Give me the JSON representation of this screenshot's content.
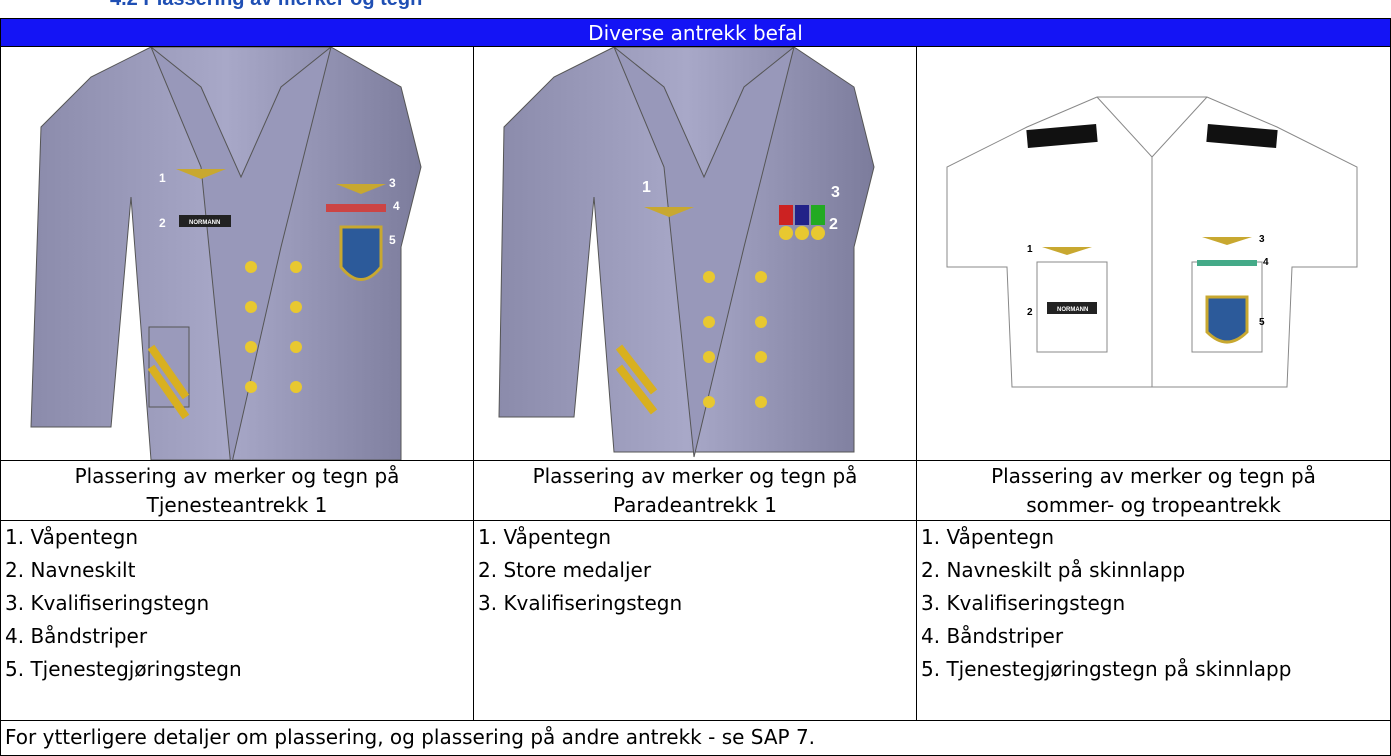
{
  "header": {
    "title": "4.2 Plassering av merker og tegn"
  },
  "table": {
    "heading": "Diverse antrekk befal",
    "images": [
      {
        "labels": [
          "1",
          "2",
          "3",
          "4",
          "5"
        ],
        "name_tag": "NORMANN"
      },
      {
        "labels": [
          "1",
          "3",
          "2"
        ]
      },
      {
        "labels": [
          "1",
          "2",
          "3",
          "4",
          "5"
        ],
        "name_tag": "NORMANN"
      }
    ],
    "captions": [
      [
        "Plassering av merker og tegn på",
        "Tjenesteantrekk 1"
      ],
      [
        "Plassering av merker og tegn på",
        "Paradeantrekk 1"
      ],
      [
        "Plassering av merker og tegn på",
        "sommer- og tropeantrekk"
      ]
    ],
    "lists": [
      [
        "1. Våpentegn",
        "2. Navneskilt",
        "3. Kvalifiseringstegn",
        "4. Båndstriper",
        "5. Tjenestegjøringstegn"
      ],
      [
        "1. Våpentegn",
        "2. Store medaljer",
        "3. Kvalifiseringstegn"
      ],
      [
        "1. Våpentegn",
        "2. Navneskilt på skinnlapp",
        "3. Kvalifiseringstegn",
        "4. Båndstriper",
        "5. Tjenestegjøringstegn på skinnlapp"
      ]
    ],
    "footer": "For ytterligere detaljer om plassering, og plassering på andre antrekk - se SAP 7."
  }
}
